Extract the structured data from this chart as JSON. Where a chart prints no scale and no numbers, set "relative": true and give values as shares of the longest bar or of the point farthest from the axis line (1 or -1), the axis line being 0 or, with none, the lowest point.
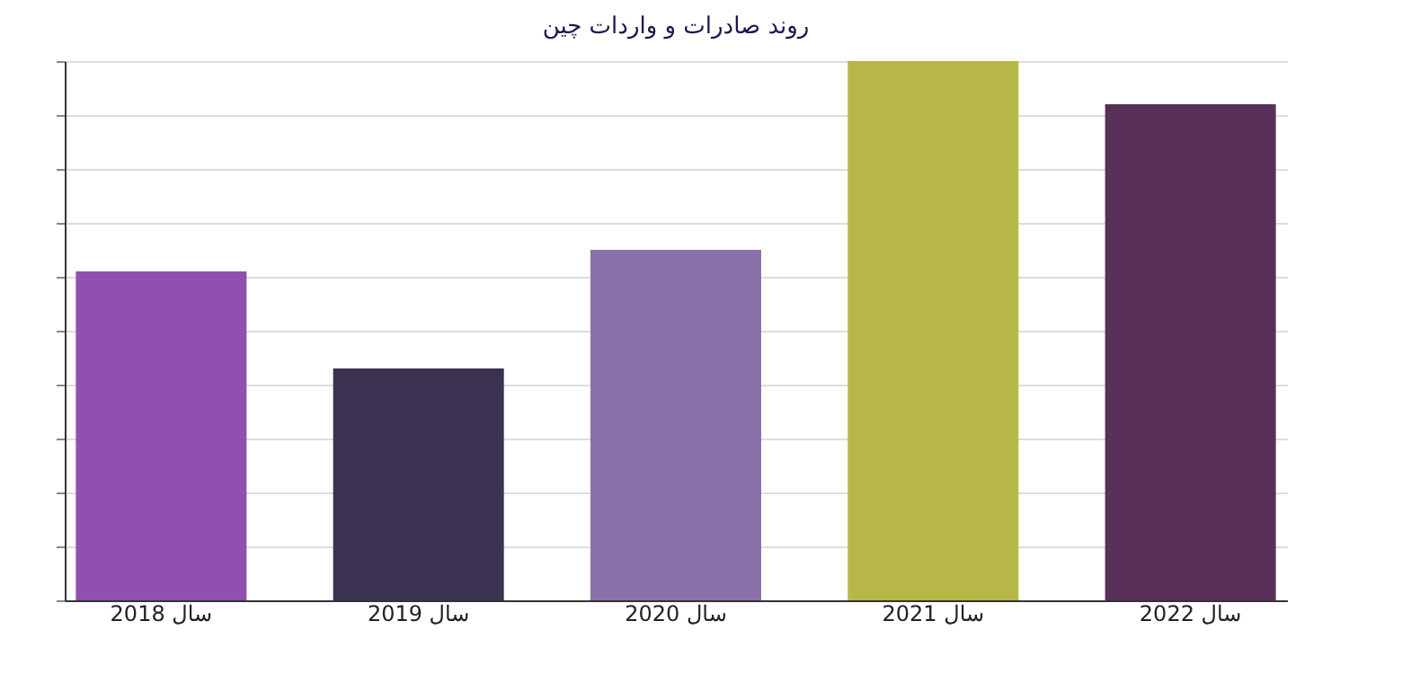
{
  "chart_data": {
    "type": "bar",
    "title": "روند صادرات و واردات چین",
    "categories": [
      "سال 2018",
      "سال 2019",
      "سال 2020",
      "سال 2021",
      "سال 2022"
    ],
    "values": [
      0.61,
      0.43,
      0.65,
      1,
      0.92
    ],
    "colors": [
      "#9050b0",
      "#3a3250",
      "#8a70a8",
      "#b8b848",
      "#583058"
    ],
    "relative": true,
    "grid": "y"
  }
}
